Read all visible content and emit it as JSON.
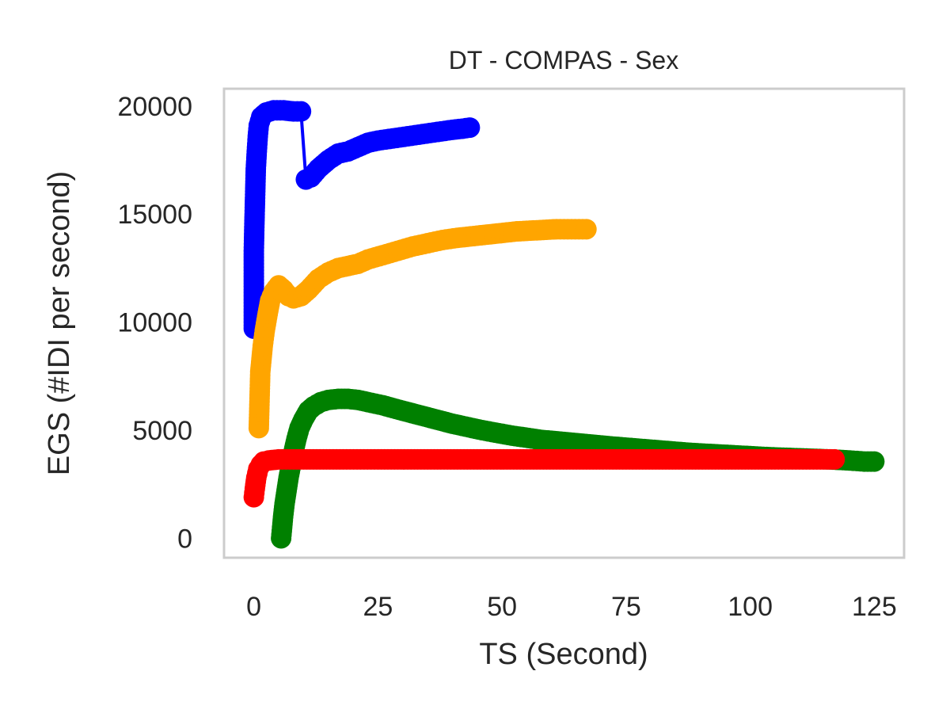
{
  "chart_data": {
    "type": "scatter",
    "title": "DT - COMPAS - Sex",
    "xlabel": "TS (Second)",
    "ylabel": "EGS (#IDI  per second)",
    "xlim": [
      -6,
      131
    ],
    "ylim": [
      -900,
      20800
    ],
    "xticks": [
      0,
      25,
      50,
      75,
      100,
      125
    ],
    "yticks": [
      0,
      5000,
      10000,
      15000,
      20000
    ],
    "grid": false,
    "legend": "none",
    "series": [
      {
        "color": "#0000ff",
        "points": [
          [
            0,
            9700
          ],
          [
            0,
            12100
          ],
          [
            0,
            13300
          ],
          [
            0.1,
            14400
          ],
          [
            0.2,
            15300
          ],
          [
            0.3,
            16200
          ],
          [
            0.4,
            17100
          ],
          [
            0.6,
            17900
          ],
          [
            0.8,
            18600
          ],
          [
            1,
            19100
          ],
          [
            1.5,
            19500
          ],
          [
            2.5,
            19700
          ],
          [
            4,
            19800
          ],
          [
            6,
            19800
          ],
          [
            8,
            19750
          ],
          [
            9.5,
            19750
          ],
          [
            10.5,
            16600
          ],
          [
            11.5,
            16700
          ],
          [
            13,
            17100
          ],
          [
            15,
            17500
          ],
          [
            17,
            17800
          ],
          [
            19,
            17900
          ],
          [
            21,
            18100
          ],
          [
            23,
            18300
          ],
          [
            25,
            18400
          ],
          [
            28,
            18500
          ],
          [
            31,
            18600
          ],
          [
            34,
            18700
          ],
          [
            37,
            18800
          ],
          [
            40,
            18900
          ],
          [
            42,
            18950
          ],
          [
            43.5,
            19000
          ]
        ]
      },
      {
        "color": "#ffa500",
        "points": [
          [
            1,
            5100
          ],
          [
            1.3,
            7700
          ],
          [
            1.8,
            8900
          ],
          [
            2.2,
            9600
          ],
          [
            2.8,
            10400
          ],
          [
            3.3,
            11000
          ],
          [
            4,
            11400
          ],
          [
            5,
            11700
          ],
          [
            6,
            11500
          ],
          [
            7,
            11200
          ],
          [
            8,
            11100
          ],
          [
            9.5,
            11200
          ],
          [
            11,
            11500
          ],
          [
            13,
            12000
          ],
          [
            15,
            12300
          ],
          [
            17,
            12500
          ],
          [
            19,
            12600
          ],
          [
            21,
            12700
          ],
          [
            23,
            12900
          ],
          [
            26,
            13100
          ],
          [
            29,
            13300
          ],
          [
            32,
            13500
          ],
          [
            35,
            13650
          ],
          [
            38,
            13800
          ],
          [
            41,
            13900
          ],
          [
            45,
            14000
          ],
          [
            49,
            14100
          ],
          [
            53,
            14200
          ],
          [
            57,
            14250
          ],
          [
            61,
            14300
          ],
          [
            64,
            14300
          ],
          [
            67,
            14300
          ]
        ]
      },
      {
        "color": "#008000",
        "points": [
          [
            5.5,
            0
          ],
          [
            5.7,
            500
          ],
          [
            5.9,
            1000
          ],
          [
            6.2,
            1600
          ],
          [
            6.6,
            2200
          ],
          [
            7,
            2800
          ],
          [
            7.5,
            3400
          ],
          [
            8,
            4000
          ],
          [
            8.6,
            4600
          ],
          [
            9.2,
            5100
          ],
          [
            10,
            5500
          ],
          [
            11,
            5900
          ],
          [
            12,
            6100
          ],
          [
            13.5,
            6300
          ],
          [
            15,
            6400
          ],
          [
            17,
            6450
          ],
          [
            19,
            6450
          ],
          [
            21,
            6400
          ],
          [
            23,
            6300
          ],
          [
            26,
            6150
          ],
          [
            30,
            5900
          ],
          [
            35,
            5600
          ],
          [
            40,
            5300
          ],
          [
            46,
            5000
          ],
          [
            52,
            4750
          ],
          [
            58,
            4550
          ],
          [
            65,
            4400
          ],
          [
            72,
            4250
          ],
          [
            80,
            4100
          ],
          [
            88,
            3950
          ],
          [
            96,
            3850
          ],
          [
            104,
            3750
          ],
          [
            110,
            3700
          ],
          [
            116,
            3650
          ],
          [
            120,
            3600
          ],
          [
            123,
            3550
          ],
          [
            125,
            3550
          ]
        ]
      },
      {
        "color": "#ff0000",
        "points": [
          [
            0,
            1900
          ],
          [
            0.2,
            2300
          ],
          [
            0.5,
            2800
          ],
          [
            0.9,
            3200
          ],
          [
            1.4,
            3400
          ],
          [
            2,
            3550
          ],
          [
            3,
            3600
          ],
          [
            5,
            3650
          ],
          [
            8,
            3650
          ],
          [
            12,
            3650
          ],
          [
            18,
            3650
          ],
          [
            25,
            3650
          ],
          [
            35,
            3650
          ],
          [
            45,
            3650
          ],
          [
            55,
            3650
          ],
          [
            65,
            3650
          ],
          [
            75,
            3650
          ],
          [
            85,
            3650
          ],
          [
            95,
            3650
          ],
          [
            105,
            3650
          ],
          [
            112,
            3650
          ],
          [
            117,
            3650
          ]
        ]
      }
    ]
  }
}
